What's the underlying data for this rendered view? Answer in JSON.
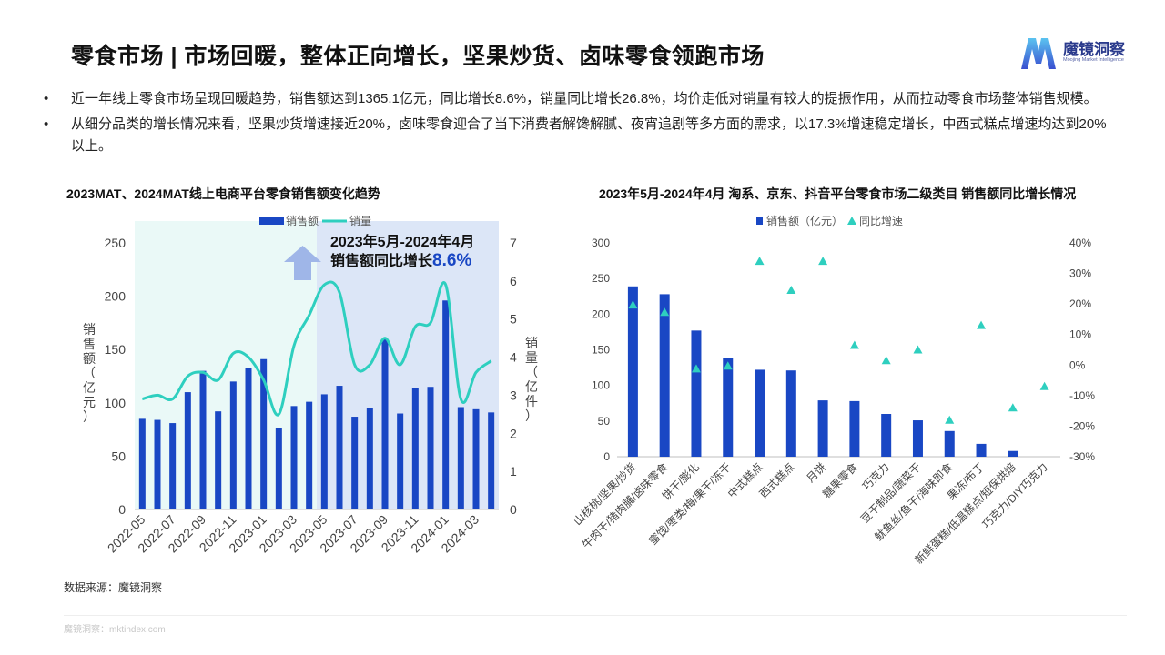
{
  "page": {
    "title": "零食市场 | 市场回暖，整体正向增长，坚果炒货、卤味零食领跑市场",
    "logo": {
      "name": "魔镜洞察",
      "sub": "Moojing Market Intelligence"
    },
    "bullets": [
      "近一年线上零食市场呈现回暖趋势，销售额达到1365.1亿元，同比增长8.6%，销量同比增长26.8%，均价走低对销量有较大的提振作用，从而拉动零食市场整体销售规模。",
      "从细分品类的增长情况来看，坚果炒货增速接近20%，卤味零食迎合了当下消费者解馋解腻、夜宵追剧等多方面的需求，以17.3%增速稳定增长，中西式糕点增速均达到20%以上。"
    ],
    "bullet_marker": "•",
    "source": "数据来源：魔镜洞察",
    "footer": "魔镜洞察：mktindex.com",
    "colors": {
      "bar": "#1947c4",
      "line": "#2ecfbf",
      "shade_left": "#eaf9f7",
      "shade_right": "#dce6f7",
      "triangle": "#2ecfbf"
    }
  },
  "chart_data": [
    {
      "type": "bar",
      "title": "2023MAT、2024MAT线上电商平台零食销售额变化趋势",
      "legend": [
        "销售额",
        "销量"
      ],
      "ylabel": "销售额（亿元）",
      "y2label": "销量（亿件）",
      "ylim": [
        0,
        250
      ],
      "yticks": [
        0,
        50,
        100,
        150,
        200,
        250
      ],
      "y2lim": [
        0,
        7
      ],
      "y2ticks": [
        0,
        1,
        2,
        3,
        4,
        5,
        6,
        7
      ],
      "x": [
        "2022-05",
        "2022-06",
        "2022-07",
        "2022-08",
        "2022-09",
        "2022-10",
        "2022-11",
        "2022-12",
        "2023-01",
        "2023-02",
        "2023-03",
        "2023-04",
        "2023-05",
        "2023-06",
        "2023-07",
        "2023-08",
        "2023-09",
        "2023-10",
        "2023-11",
        "2023-12",
        "2024-01",
        "2024-02",
        "2024-03",
        "2024-04"
      ],
      "xtick_labels": [
        "2022-05",
        "2022-07",
        "2022-09",
        "2022-11",
        "2023-01",
        "2023-03",
        "2023-05",
        "2023-07",
        "2023-09",
        "2023-11",
        "2024-01",
        "2024-03"
      ],
      "series": [
        {
          "name": "销售额",
          "kind": "bar",
          "values": [
            85,
            84,
            81,
            110,
            130,
            92,
            120,
            133,
            141,
            76,
            97,
            101,
            108,
            116,
            87,
            95,
            160,
            90,
            114,
            115,
            196,
            96,
            94,
            91
          ]
        },
        {
          "name": "销量",
          "kind": "line",
          "values": [
            2.9,
            3.0,
            2.9,
            3.5,
            3.6,
            3.4,
            4.1,
            4.0,
            3.4,
            2.5,
            4.3,
            5.1,
            5.9,
            5.7,
            3.8,
            3.8,
            4.5,
            3.8,
            4.8,
            4.9,
            5.9,
            2.9,
            3.6,
            3.9
          ]
        }
      ],
      "annotation": {
        "line1": "2023年5月-2024年4月",
        "line2": "销售额同比增长",
        "highlight": "8.6%"
      }
    },
    {
      "type": "bar",
      "title": "2023年5月-2024年4月 淘系、京东、抖音平台零食市场二级类目 销售额同比增长情况",
      "legend": [
        "销售额（亿元）",
        "同比增速"
      ],
      "ylim": [
        0,
        300
      ],
      "yticks": [
        0,
        50,
        100,
        150,
        200,
        250,
        300
      ],
      "y2lim": [
        -30,
        40
      ],
      "y2ticks": [
        "-30%",
        "-20%",
        "-10%",
        "0%",
        "10%",
        "20%",
        "30%",
        "40%"
      ],
      "categories": [
        "山核桃/坚果/炒货",
        "牛肉干/猪肉脯/卤味零食",
        "饼干/膨化",
        "蜜饯/枣类/梅/果干/冻干",
        "中式糕点",
        "西式糕点",
        "月饼",
        "糖果零食",
        "巧克力",
        "豆干制品/蔬菜干",
        "鱿鱼丝/鱼干/海味即食",
        "果冻/布丁",
        "新鲜蛋糕/低温糕点/短保烘焙",
        "巧克力/DIY巧克力"
      ],
      "series": [
        {
          "name": "销售额（亿元）",
          "kind": "bar",
          "values": [
            239,
            228,
            177,
            139,
            122,
            121,
            79,
            78,
            60,
            51,
            36,
            18,
            8,
            0
          ]
        },
        {
          "name": "同比增速",
          "kind": "scatter",
          "values": [
            19.7,
            17.3,
            -1.2,
            -0.3,
            34.0,
            24.5,
            34.0,
            6.5,
            1.5,
            5.0,
            -18.0,
            13.0,
            -14.0,
            -7.0
          ]
        }
      ]
    }
  ]
}
